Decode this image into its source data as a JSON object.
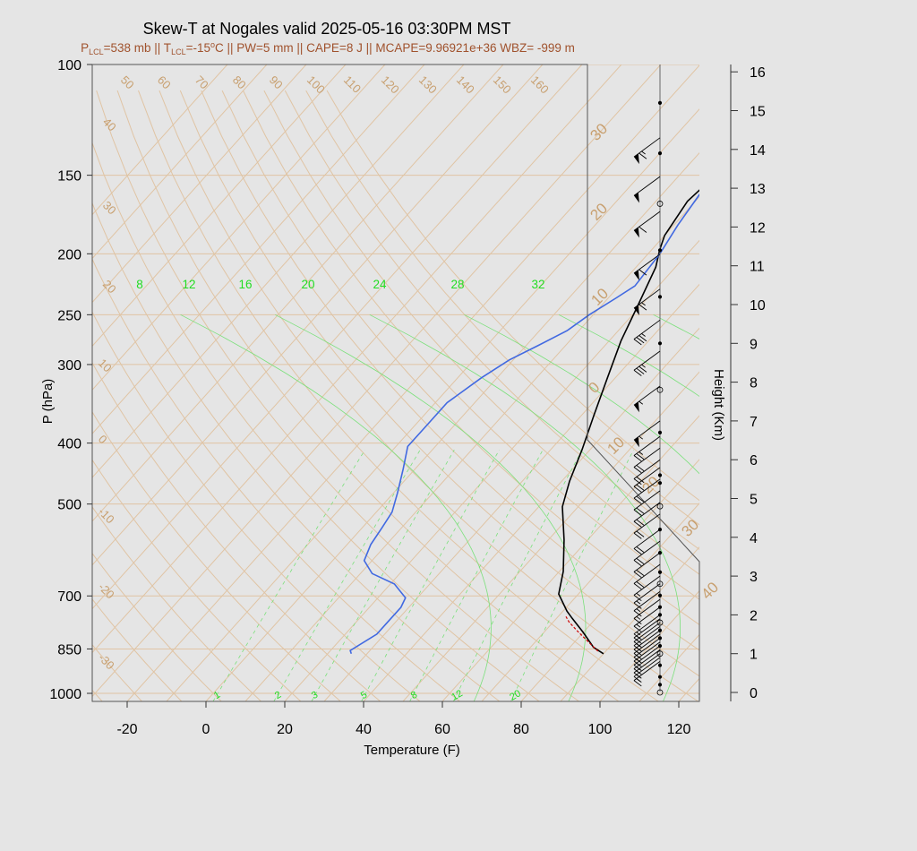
{
  "title": "Skew-T at Nogales valid 2025-05-16 03:30PM MST",
  "subtitle": {
    "p_lcl": "538 mb",
    "t_lcl": "-15",
    "pw": "5 mm",
    "cape": "8 J",
    "mcape": "9.96921e+36",
    "wbz": "-999 m"
  },
  "colors": {
    "temperature": "#000000",
    "dewpoint": "#4169e1",
    "parcel": "#cc0000",
    "isobar": "#e0c4a4",
    "isotherm": "#e0c4a4",
    "moist_adiabat": "#7be07b",
    "mixing_ratio": "#7be07b",
    "title_accent": "#a0522d"
  },
  "chart_data": {
    "type": "line",
    "xlabel": "Temperature (F)",
    "ylabel": "P (hPa)",
    "y2label": "Height (Km)",
    "xlim": [
      -28,
      125
    ],
    "ylim": [
      1030,
      100
    ],
    "y_scale": "log",
    "x_ticks": [
      "-20",
      "0",
      "20",
      "40",
      "60",
      "80",
      "100",
      "120"
    ],
    "y_ticks": [
      "100",
      "150",
      "200",
      "250",
      "300",
      "400",
      "500",
      "700",
      "850",
      "1000"
    ],
    "height_ticks": [
      "0",
      "1",
      "2",
      "3",
      "4",
      "5",
      "6",
      "7",
      "8",
      "9",
      "10",
      "11",
      "12",
      "13",
      "14",
      "15",
      "16"
    ],
    "isotherm_labels": [
      "50",
      "60",
      "70",
      "80",
      "90",
      "100",
      "110",
      "120",
      "130",
      "140",
      "150",
      "160",
      "40",
      "30",
      "20",
      "10",
      "0",
      "-10",
      "-20",
      "-30"
    ],
    "right_isotherm_labels": [
      "30",
      "20",
      "10",
      "0",
      "10",
      "20",
      "30",
      "40"
    ],
    "wetbulb_labels": [
      "8",
      "12",
      "16",
      "20",
      "24",
      "28",
      "32"
    ],
    "mixing_ratio_labels": [
      "1",
      "2",
      "3",
      "5",
      "8",
      "12",
      "20"
    ],
    "series": [
      {
        "id": "temperature",
        "points": [
          [
            90,
            865
          ],
          [
            86,
            845
          ],
          [
            80,
            800
          ],
          [
            74,
            760
          ],
          [
            71,
            740
          ],
          [
            65,
            695
          ],
          [
            61,
            640
          ],
          [
            54,
            570
          ],
          [
            46,
            505
          ],
          [
            42,
            460
          ],
          [
            38,
            410
          ],
          [
            33,
            360
          ],
          [
            28,
            315
          ],
          [
            23,
            275
          ],
          [
            19,
            240
          ],
          [
            15,
            210
          ],
          [
            12,
            197
          ],
          [
            10,
            187
          ],
          [
            8,
            165
          ],
          [
            9,
            152
          ],
          [
            16,
            140
          ],
          [
            24,
            128
          ],
          [
            36,
            115
          ],
          [
            52,
            100
          ]
        ]
      },
      {
        "id": "dewpoint",
        "points": [
          [
            26,
            865
          ],
          [
            25,
            855
          ],
          [
            28,
            805
          ],
          [
            28,
            770
          ],
          [
            28,
            730
          ],
          [
            27,
            705
          ],
          [
            21,
            670
          ],
          [
            13,
            645
          ],
          [
            8,
            615
          ],
          [
            6,
            580
          ],
          [
            5,
            545
          ],
          [
            4,
            515
          ],
          [
            1,
            480
          ],
          [
            -3,
            440
          ],
          [
            -7,
            405
          ],
          [
            -7,
            375
          ],
          [
            -7,
            345
          ],
          [
            -4,
            315
          ],
          [
            -1,
            295
          ],
          [
            3,
            280
          ],
          [
            7,
            265
          ],
          [
            9,
            250
          ],
          [
            12,
            235
          ],
          [
            14,
            225
          ],
          [
            13,
            200
          ],
          [
            11,
            180
          ],
          [
            9,
            155
          ],
          [
            5,
            135
          ],
          [
            5,
            130
          ],
          [
            8,
            120
          ],
          [
            12,
            110
          ],
          [
            17,
            100
          ]
        ]
      },
      {
        "id": "parcel",
        "points": [
          [
            88,
            857
          ],
          [
            85,
            838
          ],
          [
            78,
            795
          ],
          [
            74,
            770
          ],
          [
            72,
            755
          ]
        ]
      }
    ],
    "wind_barbs": [
      {
        "km": 0.8,
        "speed_kt": 15
      },
      {
        "km": 0.9,
        "speed_kt": 15
      },
      {
        "km": 1.0,
        "speed_kt": 15
      },
      {
        "km": 1.1,
        "speed_kt": 15
      },
      {
        "km": 1.2,
        "speed_kt": 15
      },
      {
        "km": 1.3,
        "speed_kt": 15
      },
      {
        "km": 1.4,
        "speed_kt": 15
      },
      {
        "km": 1.5,
        "speed_kt": 15
      },
      {
        "km": 1.6,
        "speed_kt": 15
      },
      {
        "km": 1.7,
        "speed_kt": 15
      },
      {
        "km": 1.8,
        "speed_kt": 15
      },
      {
        "km": 1.9,
        "speed_kt": 15
      },
      {
        "km": 2.0,
        "speed_kt": 15
      },
      {
        "km": 2.2,
        "speed_kt": 15
      },
      {
        "km": 2.4,
        "speed_kt": 15
      },
      {
        "km": 2.6,
        "speed_kt": 15
      },
      {
        "km": 2.8,
        "speed_kt": 15
      },
      {
        "km": 3.0,
        "speed_kt": 15
      },
      {
        "km": 3.3,
        "speed_kt": 20
      },
      {
        "km": 3.6,
        "speed_kt": 20
      },
      {
        "km": 3.9,
        "speed_kt": 20
      },
      {
        "km": 4.2,
        "speed_kt": 20
      },
      {
        "km": 4.6,
        "speed_kt": 20
      },
      {
        "km": 4.9,
        "speed_kt": 20
      },
      {
        "km": 5.2,
        "speed_kt": 20
      },
      {
        "km": 5.5,
        "speed_kt": 20
      },
      {
        "km": 5.8,
        "speed_kt": 20
      },
      {
        "km": 6.0,
        "speed_kt": 20
      },
      {
        "km": 6.3,
        "speed_kt": 20
      },
      {
        "km": 6.6,
        "speed_kt": 25
      },
      {
        "km": 7.0,
        "speed_kt": 55
      },
      {
        "km": 7.9,
        "speed_kt": 55
      },
      {
        "km": 8.8,
        "speed_kt": 35
      },
      {
        "km": 9.6,
        "speed_kt": 35
      },
      {
        "km": 10.4,
        "speed_kt": 65
      },
      {
        "km": 11.3,
        "speed_kt": 60
      },
      {
        "km": 12.4,
        "speed_kt": 60
      },
      {
        "km": 13.3,
        "speed_kt": 50
      },
      {
        "km": 14.3,
        "speed_kt": 65
      }
    ],
    "height_markers_km": [
      0,
      0.2,
      0.4,
      0.7,
      1.0,
      1.2,
      1.4,
      1.6,
      1.8,
      2.0,
      2.2,
      2.5,
      2.8,
      3.1,
      3.6,
      4.2,
      4.8,
      5.4,
      5.6,
      6.7,
      7.8,
      9.0,
      10.2,
      11.4,
      12.6,
      13.9,
      15.2
    ]
  }
}
